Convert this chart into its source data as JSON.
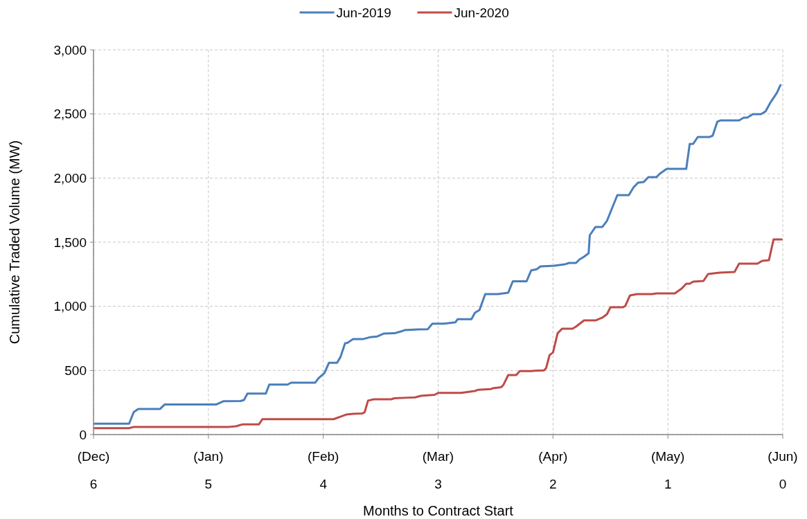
{
  "chart_data": {
    "type": "line",
    "xlabel": "Months to Contract Start",
    "ylabel": "Cumulative Traded Volume (MW)",
    "xlim": [
      6,
      0
    ],
    "xticks": [
      6,
      5,
      4,
      3,
      2,
      1,
      0
    ],
    "annotations": [
      "(Dec)",
      "(Jan)",
      "(Feb)",
      "(Mar)",
      "(Apr)",
      "(May)",
      "(Jun)"
    ],
    "ylim": [
      0,
      3000
    ],
    "yticks": [
      0,
      {
        "value": 500,
        "label": "500"
      },
      {
        "value": 1000,
        "label": "1,000"
      },
      {
        "value": 1500,
        "label": "1,500"
      },
      {
        "value": 2000,
        "label": "2,000"
      },
      {
        "value": 2500,
        "label": "2,500"
      },
      {
        "value": 3000,
        "label": "3,000"
      }
    ],
    "grid": true,
    "legend": "top",
    "marker": "none",
    "line_style": "solid",
    "series": [
      {
        "name": "Jun-2019",
        "color": "#4a7ebb",
        "x": [
          5.99,
          5.69,
          5.65,
          5.61,
          5.42,
          5.38,
          4.93,
          4.87,
          4.72,
          4.69,
          4.66,
          4.5,
          4.47,
          4.31,
          4.28,
          4.07,
          4.04,
          3.99,
          3.95,
          3.88,
          3.85,
          3.81,
          3.79,
          3.74,
          3.65,
          3.59,
          3.53,
          3.47,
          3.38,
          3.32,
          3.29,
          3.17,
          3.09,
          3.05,
          2.95,
          2.85,
          2.83,
          2.71,
          2.68,
          2.64,
          2.59,
          2.48,
          2.39,
          2.35,
          2.23,
          2.19,
          2.14,
          2.11,
          1.99,
          1.9,
          1.86,
          1.8,
          1.77,
          1.73,
          1.69,
          1.68,
          1.63,
          1.57,
          1.53,
          1.44,
          1.34,
          1.3,
          1.26,
          1.21,
          1.17,
          1.1,
          1.07,
          1.01,
          0.84,
          0.81,
          0.78,
          0.74,
          0.64,
          0.61,
          0.57,
          0.54,
          0.38,
          0.34,
          0.31,
          0.26,
          0.19,
          0.15,
          0.11,
          0.05,
          0.02
        ],
        "values": [
          85,
          85,
          175,
          200,
          200,
          235,
          235,
          260,
          262,
          270,
          320,
          320,
          390,
          390,
          405,
          405,
          440,
          480,
          560,
          560,
          605,
          712,
          715,
          745,
          745,
          760,
          765,
          788,
          790,
          805,
          815,
          820,
          822,
          865,
          865,
          875,
          900,
          900,
          950,
          971,
          1095,
          1095,
          1106,
          1195,
          1195,
          1280,
          1290,
          1311,
          1317,
          1327,
          1338,
          1338,
          1365,
          1387,
          1414,
          1554,
          1619,
          1619,
          1667,
          1867,
          1867,
          1926,
          1964,
          1970,
          2007,
          2007,
          2034,
          2072,
          2072,
          2266,
          2266,
          2320,
          2320,
          2331,
          2439,
          2450,
          2450,
          2471,
          2471,
          2498,
          2498,
          2520,
          2585,
          2666,
          2725
        ]
      },
      {
        "name": "Jun-2020",
        "color": "#be4b48",
        "x": [
          5.99,
          5.69,
          5.65,
          4.82,
          4.76,
          4.7,
          4.56,
          4.53,
          3.91,
          3.85,
          3.8,
          3.74,
          3.66,
          3.64,
          3.61,
          3.56,
          3.41,
          3.38,
          3.26,
          3.2,
          3.15,
          3.03,
          3.0,
          2.8,
          2.68,
          2.65,
          2.54,
          2.52,
          2.45,
          2.43,
          2.39,
          2.32,
          2.29,
          2.19,
          2.16,
          2.08,
          2.06,
          2.03,
          2.0,
          1.96,
          1.92,
          1.83,
          1.8,
          1.73,
          1.63,
          1.57,
          1.53,
          1.5,
          1.39,
          1.37,
          1.33,
          1.27,
          1.14,
          1.1,
          0.94,
          0.88,
          0.84,
          0.81,
          0.78,
          0.69,
          0.65,
          0.55,
          0.42,
          0.38,
          0.22,
          0.18,
          0.12,
          0.08,
          0.01
        ],
        "values": [
          50,
          50,
          60,
          60,
          65,
          80,
          80,
          120,
          120,
          140,
          156,
          162,
          165,
          173,
          265,
          275,
          275,
          283,
          288,
          290,
          302,
          310,
          325,
          325,
          340,
          350,
          355,
          362,
          370,
          390,
          464,
          464,
          495,
          495,
          498,
          500,
          518,
          620,
          640,
          790,
          826,
          826,
          842,
          890,
          890,
          912,
          939,
          993,
          993,
          1004,
          1085,
          1095,
          1095,
          1101,
          1101,
          1138,
          1176,
          1176,
          1192,
          1198,
          1252,
          1263,
          1268,
          1333,
          1333,
          1354,
          1360,
          1522,
          1522
        ]
      }
    ]
  }
}
